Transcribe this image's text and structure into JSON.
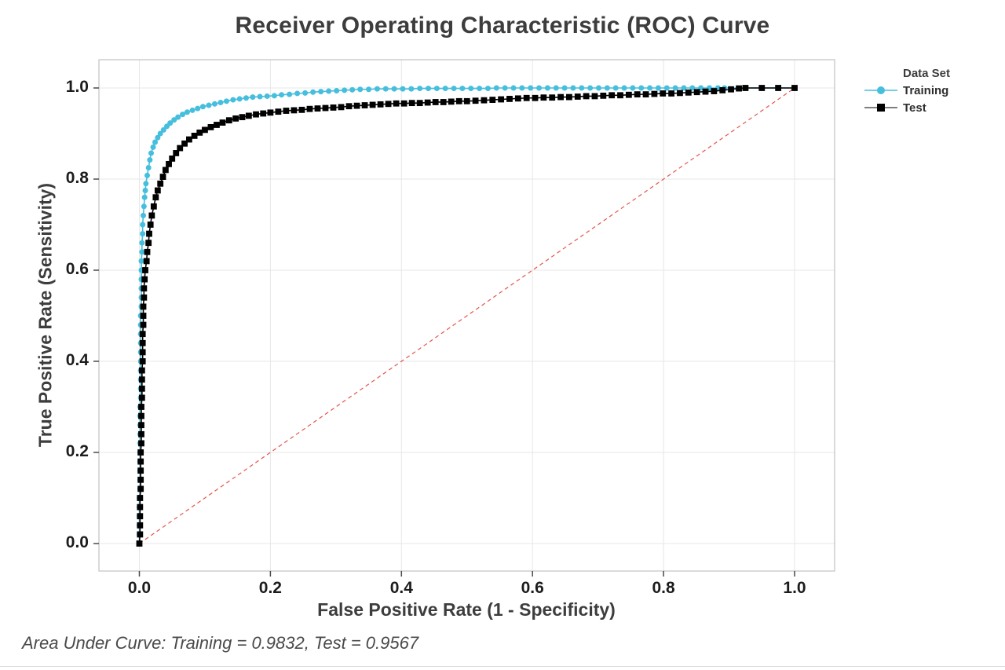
{
  "chart_data": {
    "type": "line",
    "title": "Receiver Operating Characteristic (ROC) Curve",
    "xlabel": "False Positive Rate (1 - Specificity)",
    "ylabel": "True Positive Rate (Sensitivity)",
    "xlim": [
      0,
      1
    ],
    "ylim": [
      0,
      1
    ],
    "xticks": [
      "0.0",
      "0.2",
      "0.4",
      "0.6",
      "0.8",
      "1.0"
    ],
    "yticks": [
      "0.0",
      "0.2",
      "0.4",
      "0.6",
      "0.8",
      "1.0"
    ],
    "grid": true,
    "legend": {
      "position": "right",
      "title": "Data Set"
    },
    "reference_line": {
      "name": "chance diagonal",
      "from": [
        0,
        0
      ],
      "to": [
        1,
        1
      ],
      "color": "#e4554b",
      "style": "dashed"
    },
    "annotation": "Area Under Curve: Training = 0.9832, Test = 0.9567",
    "colors": {
      "grid": "#e7e7e7",
      "frame": "#c6c6c6",
      "tick": "#4a4a4a",
      "background": "#ffffff"
    },
    "series": [
      {
        "name": "Training",
        "marker": "circle",
        "color": "#46bede",
        "legend_line_color": "#46bede",
        "auc": 0.9832,
        "points": [
          [
            0,
            0
          ],
          [
            0,
            0.02
          ],
          [
            0,
            0.04
          ],
          [
            0,
            0.06
          ],
          [
            0,
            0.08
          ],
          [
            0,
            0.1
          ],
          [
            0.001,
            0.12
          ],
          [
            0.001,
            0.14
          ],
          [
            0.001,
            0.16
          ],
          [
            0.001,
            0.18
          ],
          [
            0.001,
            0.2
          ],
          [
            0.001,
            0.22
          ],
          [
            0.001,
            0.24
          ],
          [
            0.001,
            0.26
          ],
          [
            0.001,
            0.28
          ],
          [
            0.001,
            0.3
          ],
          [
            0.002,
            0.32
          ],
          [
            0.002,
            0.34
          ],
          [
            0.002,
            0.36
          ],
          [
            0.002,
            0.38
          ],
          [
            0.002,
            0.4
          ],
          [
            0.002,
            0.42
          ],
          [
            0.002,
            0.44
          ],
          [
            0.002,
            0.46
          ],
          [
            0.002,
            0.48
          ],
          [
            0.002,
            0.5
          ],
          [
            0.003,
            0.52
          ],
          [
            0.003,
            0.54
          ],
          [
            0.003,
            0.56
          ],
          [
            0.003,
            0.58
          ],
          [
            0.003,
            0.6
          ],
          [
            0.003,
            0.62
          ],
          [
            0.004,
            0.64
          ],
          [
            0.004,
            0.66
          ],
          [
            0.005,
            0.68
          ],
          [
            0.005,
            0.7
          ],
          [
            0.006,
            0.72
          ],
          [
            0.007,
            0.74
          ],
          [
            0.008,
            0.76
          ],
          [
            0.009,
            0.775
          ],
          [
            0.01,
            0.79
          ],
          [
            0.012,
            0.808
          ],
          [
            0.014,
            0.825
          ],
          [
            0.016,
            0.842
          ],
          [
            0.018,
            0.857
          ],
          [
            0.021,
            0.87
          ],
          [
            0.024,
            0.881
          ],
          [
            0.028,
            0.891
          ],
          [
            0.032,
            0.9
          ],
          [
            0.037,
            0.908
          ],
          [
            0.042,
            0.916
          ],
          [
            0.047,
            0.923
          ],
          [
            0.053,
            0.93
          ],
          [
            0.059,
            0.936
          ],
          [
            0.066,
            0.942
          ],
          [
            0.073,
            0.947
          ],
          [
            0.081,
            0.951
          ],
          [
            0.089,
            0.955
          ],
          [
            0.097,
            0.959
          ],
          [
            0.106,
            0.962
          ],
          [
            0.115,
            0.965
          ],
          [
            0.124,
            0.968
          ],
          [
            0.133,
            0.971
          ],
          [
            0.143,
            0.974
          ],
          [
            0.153,
            0.976
          ],
          [
            0.163,
            0.978
          ],
          [
            0.173,
            0.98
          ],
          [
            0.184,
            0.981
          ],
          [
            0.195,
            0.982
          ],
          [
            0.206,
            0.983
          ],
          [
            0.217,
            0.985
          ],
          [
            0.229,
            0.986
          ],
          [
            0.241,
            0.988
          ],
          [
            0.253,
            0.989
          ],
          [
            0.265,
            0.991
          ],
          [
            0.277,
            0.992
          ],
          [
            0.289,
            0.993
          ],
          [
            0.301,
            0.994
          ],
          [
            0.313,
            0.995
          ],
          [
            0.325,
            0.996
          ],
          [
            0.337,
            0.997
          ],
          [
            0.35,
            0.997
          ],
          [
            0.363,
            0.998
          ],
          [
            0.376,
            0.998
          ],
          [
            0.389,
            0.998
          ],
          [
            0.402,
            0.998
          ],
          [
            0.415,
            0.998
          ],
          [
            0.428,
            0.999
          ],
          [
            0.441,
            0.999
          ],
          [
            0.454,
            0.999
          ],
          [
            0.467,
            0.999
          ],
          [
            0.48,
            0.999
          ],
          [
            0.493,
            0.999
          ],
          [
            0.506,
            0.999
          ],
          [
            0.519,
            0.999
          ],
          [
            0.532,
            0.999
          ],
          [
            0.545,
            1
          ],
          [
            0.558,
            1
          ],
          [
            0.571,
            1
          ],
          [
            0.584,
            1
          ],
          [
            0.597,
            1
          ],
          [
            0.61,
            1
          ],
          [
            0.623,
            1
          ],
          [
            0.636,
            1
          ],
          [
            0.649,
            1
          ],
          [
            0.662,
            1
          ],
          [
            0.675,
            1
          ],
          [
            0.688,
            1
          ],
          [
            0.701,
            1
          ],
          [
            0.714,
            1
          ],
          [
            0.727,
            1
          ],
          [
            0.74,
            1
          ],
          [
            0.753,
            1
          ],
          [
            0.766,
            1
          ],
          [
            0.779,
            1
          ],
          [
            0.792,
            1
          ],
          [
            0.805,
            1
          ],
          [
            0.818,
            1
          ],
          [
            0.831,
            1
          ],
          [
            0.844,
            1
          ],
          [
            0.857,
            1
          ],
          [
            0.87,
            1
          ],
          [
            0.883,
            1
          ],
          [
            0.893,
            1
          ],
          [
            1,
            1
          ]
        ]
      },
      {
        "name": "Test",
        "marker": "square",
        "color": "#000000",
        "legend_line_color": "#555555",
        "auc": 0.9567,
        "points": [
          [
            0,
            0
          ],
          [
            0.001,
            0.02
          ],
          [
            0.001,
            0.04
          ],
          [
            0.001,
            0.06
          ],
          [
            0.001,
            0.08
          ],
          [
            0.001,
            0.1
          ],
          [
            0.002,
            0.12
          ],
          [
            0.002,
            0.14
          ],
          [
            0.002,
            0.16
          ],
          [
            0.002,
            0.18
          ],
          [
            0.002,
            0.2
          ],
          [
            0.003,
            0.22
          ],
          [
            0.003,
            0.24
          ],
          [
            0.003,
            0.26
          ],
          [
            0.003,
            0.28
          ],
          [
            0.003,
            0.3
          ],
          [
            0.004,
            0.32
          ],
          [
            0.004,
            0.34
          ],
          [
            0.004,
            0.36
          ],
          [
            0.004,
            0.38
          ],
          [
            0.005,
            0.4
          ],
          [
            0.005,
            0.42
          ],
          [
            0.005,
            0.44
          ],
          [
            0.005,
            0.46
          ],
          [
            0.006,
            0.48
          ],
          [
            0.006,
            0.5
          ],
          [
            0.006,
            0.52
          ],
          [
            0.007,
            0.54
          ],
          [
            0.007,
            0.56
          ],
          [
            0.008,
            0.58
          ],
          [
            0.009,
            0.6
          ],
          [
            0.011,
            0.62
          ],
          [
            0.012,
            0.64
          ],
          [
            0.014,
            0.66
          ],
          [
            0.015,
            0.68
          ],
          [
            0.017,
            0.7
          ],
          [
            0.019,
            0.72
          ],
          [
            0.022,
            0.74
          ],
          [
            0.025,
            0.76
          ],
          [
            0.028,
            0.775
          ],
          [
            0.032,
            0.79
          ],
          [
            0.036,
            0.805
          ],
          [
            0.04,
            0.82
          ],
          [
            0.045,
            0.833
          ],
          [
            0.05,
            0.845
          ],
          [
            0.056,
            0.857
          ],
          [
            0.062,
            0.868
          ],
          [
            0.069,
            0.878
          ],
          [
            0.076,
            0.887
          ],
          [
            0.084,
            0.895
          ],
          [
            0.092,
            0.902
          ],
          [
            0.1,
            0.908
          ],
          [
            0.109,
            0.914
          ],
          [
            0.118,
            0.919
          ],
          [
            0.127,
            0.924
          ],
          [
            0.137,
            0.929
          ],
          [
            0.147,
            0.933
          ],
          [
            0.157,
            0.936
          ],
          [
            0.167,
            0.939
          ],
          [
            0.178,
            0.942
          ],
          [
            0.189,
            0.944
          ],
          [
            0.2,
            0.946
          ],
          [
            0.212,
            0.948
          ],
          [
            0.224,
            0.95
          ],
          [
            0.236,
            0.951
          ],
          [
            0.248,
            0.952
          ],
          [
            0.26,
            0.954
          ],
          [
            0.272,
            0.955
          ],
          [
            0.284,
            0.956
          ],
          [
            0.296,
            0.957
          ],
          [
            0.308,
            0.958
          ],
          [
            0.32,
            0.96
          ],
          [
            0.332,
            0.961
          ],
          [
            0.344,
            0.962
          ],
          [
            0.356,
            0.963
          ],
          [
            0.368,
            0.964
          ],
          [
            0.38,
            0.965
          ],
          [
            0.392,
            0.966
          ],
          [
            0.404,
            0.966
          ],
          [
            0.416,
            0.967
          ],
          [
            0.428,
            0.967
          ],
          [
            0.44,
            0.968
          ],
          [
            0.452,
            0.969
          ],
          [
            0.464,
            0.969
          ],
          [
            0.476,
            0.97
          ],
          [
            0.488,
            0.971
          ],
          [
            0.5,
            0.971
          ],
          [
            0.513,
            0.972
          ],
          [
            0.526,
            0.973
          ],
          [
            0.539,
            0.974
          ],
          [
            0.552,
            0.975
          ],
          [
            0.565,
            0.976
          ],
          [
            0.578,
            0.977
          ],
          [
            0.591,
            0.978
          ],
          [
            0.604,
            0.978
          ],
          [
            0.617,
            0.979
          ],
          [
            0.63,
            0.979
          ],
          [
            0.643,
            0.98
          ],
          [
            0.656,
            0.98
          ],
          [
            0.669,
            0.981
          ],
          [
            0.682,
            0.982
          ],
          [
            0.695,
            0.982
          ],
          [
            0.708,
            0.983
          ],
          [
            0.721,
            0.984
          ],
          [
            0.734,
            0.984
          ],
          [
            0.747,
            0.985
          ],
          [
            0.76,
            0.986
          ],
          [
            0.773,
            0.986
          ],
          [
            0.786,
            0.987
          ],
          [
            0.799,
            0.988
          ],
          [
            0.812,
            0.988
          ],
          [
            0.825,
            0.989
          ],
          [
            0.838,
            0.99
          ],
          [
            0.851,
            0.991
          ],
          [
            0.864,
            0.992
          ],
          [
            0.877,
            0.993
          ],
          [
            0.89,
            0.995
          ],
          [
            0.903,
            0.997
          ],
          [
            0.915,
            0.999
          ],
          [
            0.925,
            1
          ],
          [
            0.95,
            1
          ],
          [
            0.975,
            1
          ],
          [
            1,
            1
          ]
        ]
      }
    ]
  }
}
